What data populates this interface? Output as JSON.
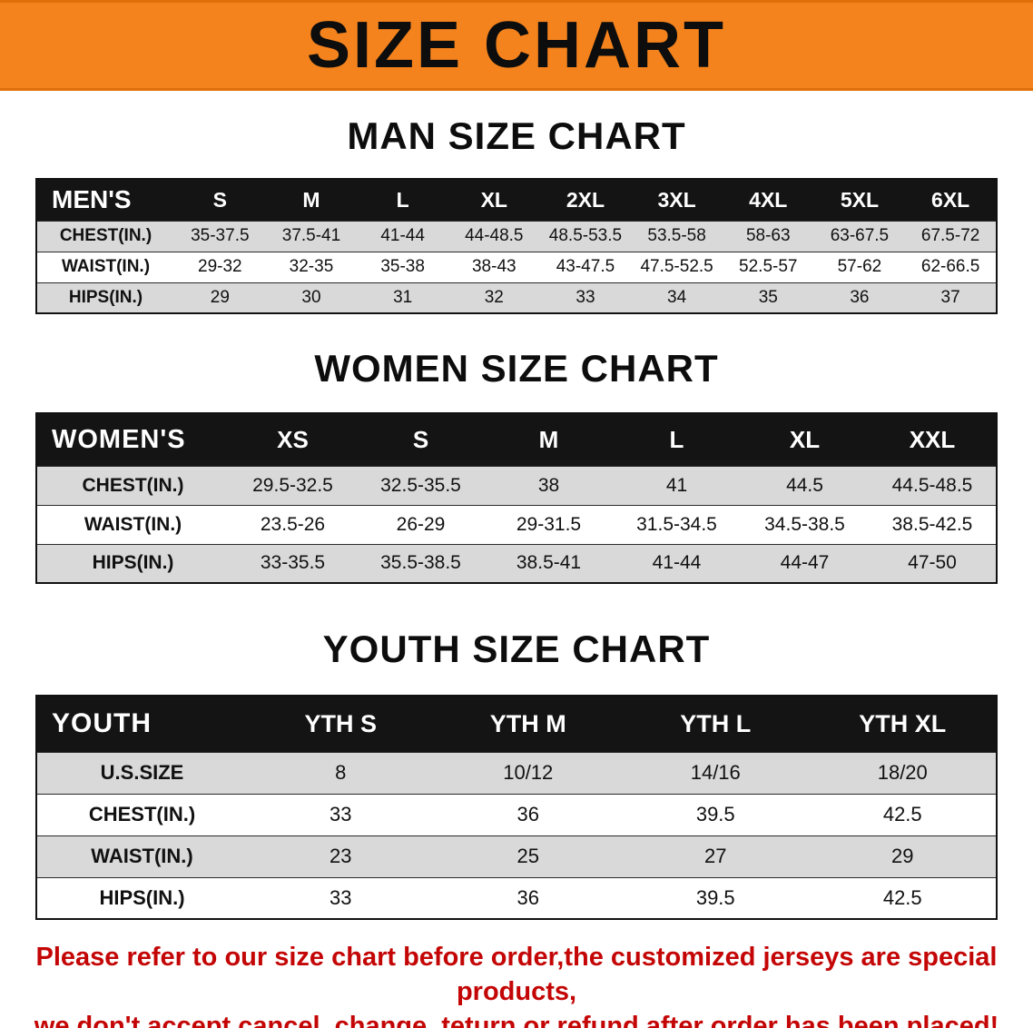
{
  "banner": {
    "title": "SIZE CHART"
  },
  "men": {
    "heading": "MAN SIZE CHART",
    "table": {
      "header": [
        "MEN'S",
        "S",
        "M",
        "L",
        "XL",
        "2XL",
        "3XL",
        "4XL",
        "5XL",
        "6XL"
      ],
      "rows": [
        [
          "CHEST(IN.)",
          "35-37.5",
          "37.5-41",
          "41-44",
          "44-48.5",
          "48.5-53.5",
          "53.5-58",
          "58-63",
          "63-67.5",
          "67.5-72"
        ],
        [
          "WAIST(IN.)",
          "29-32",
          "32-35",
          "35-38",
          "38-43",
          "43-47.5",
          "47.5-52.5",
          "52.5-57",
          "57-62",
          "62-66.5"
        ],
        [
          "HIPS(IN.)",
          "29",
          "30",
          "31",
          "32",
          "33",
          "34",
          "35",
          "36",
          "37"
        ]
      ]
    }
  },
  "women": {
    "heading": "WOMEN SIZE CHART",
    "table": {
      "header": [
        "WOMEN'S",
        "XS",
        "S",
        "M",
        "L",
        "XL",
        "XXL"
      ],
      "rows": [
        [
          "CHEST(IN.)",
          "29.5-32.5",
          "32.5-35.5",
          "38",
          "41",
          "44.5",
          "44.5-48.5"
        ],
        [
          "WAIST(IN.)",
          "23.5-26",
          "26-29",
          "29-31.5",
          "31.5-34.5",
          "34.5-38.5",
          "38.5-42.5"
        ],
        [
          "HIPS(IN.)",
          "33-35.5",
          "35.5-38.5",
          "38.5-41",
          "41-44",
          "44-47",
          "47-50"
        ]
      ]
    }
  },
  "youth": {
    "heading": "YOUTH SIZE CHART",
    "table": {
      "header": [
        "YOUTH",
        "YTH S",
        "YTH M",
        "YTH L",
        "YTH XL"
      ],
      "rows": [
        [
          "U.S.SIZE",
          "8",
          "10/12",
          "14/16",
          "18/20"
        ],
        [
          "CHEST(IN.)",
          "33",
          "36",
          "39.5",
          "42.5"
        ],
        [
          "WAIST(IN.)",
          "23",
          "25",
          "27",
          "29"
        ],
        [
          "HIPS(IN.)",
          "33",
          "36",
          "39.5",
          "42.5"
        ]
      ]
    }
  },
  "footer_note": {
    "line1": "Please refer to our size chart before order,the customized jerseys are special products,",
    "line2": "we don't accept cancel, change, teturn or refund after order has been placed!"
  },
  "colors": {
    "banner_bg": "#F5831D",
    "banner_border": "#E06F0A",
    "table_header_bg": "#141414",
    "row_stripe_bg": "#D9D9D9",
    "note_red": "#C40505"
  }
}
